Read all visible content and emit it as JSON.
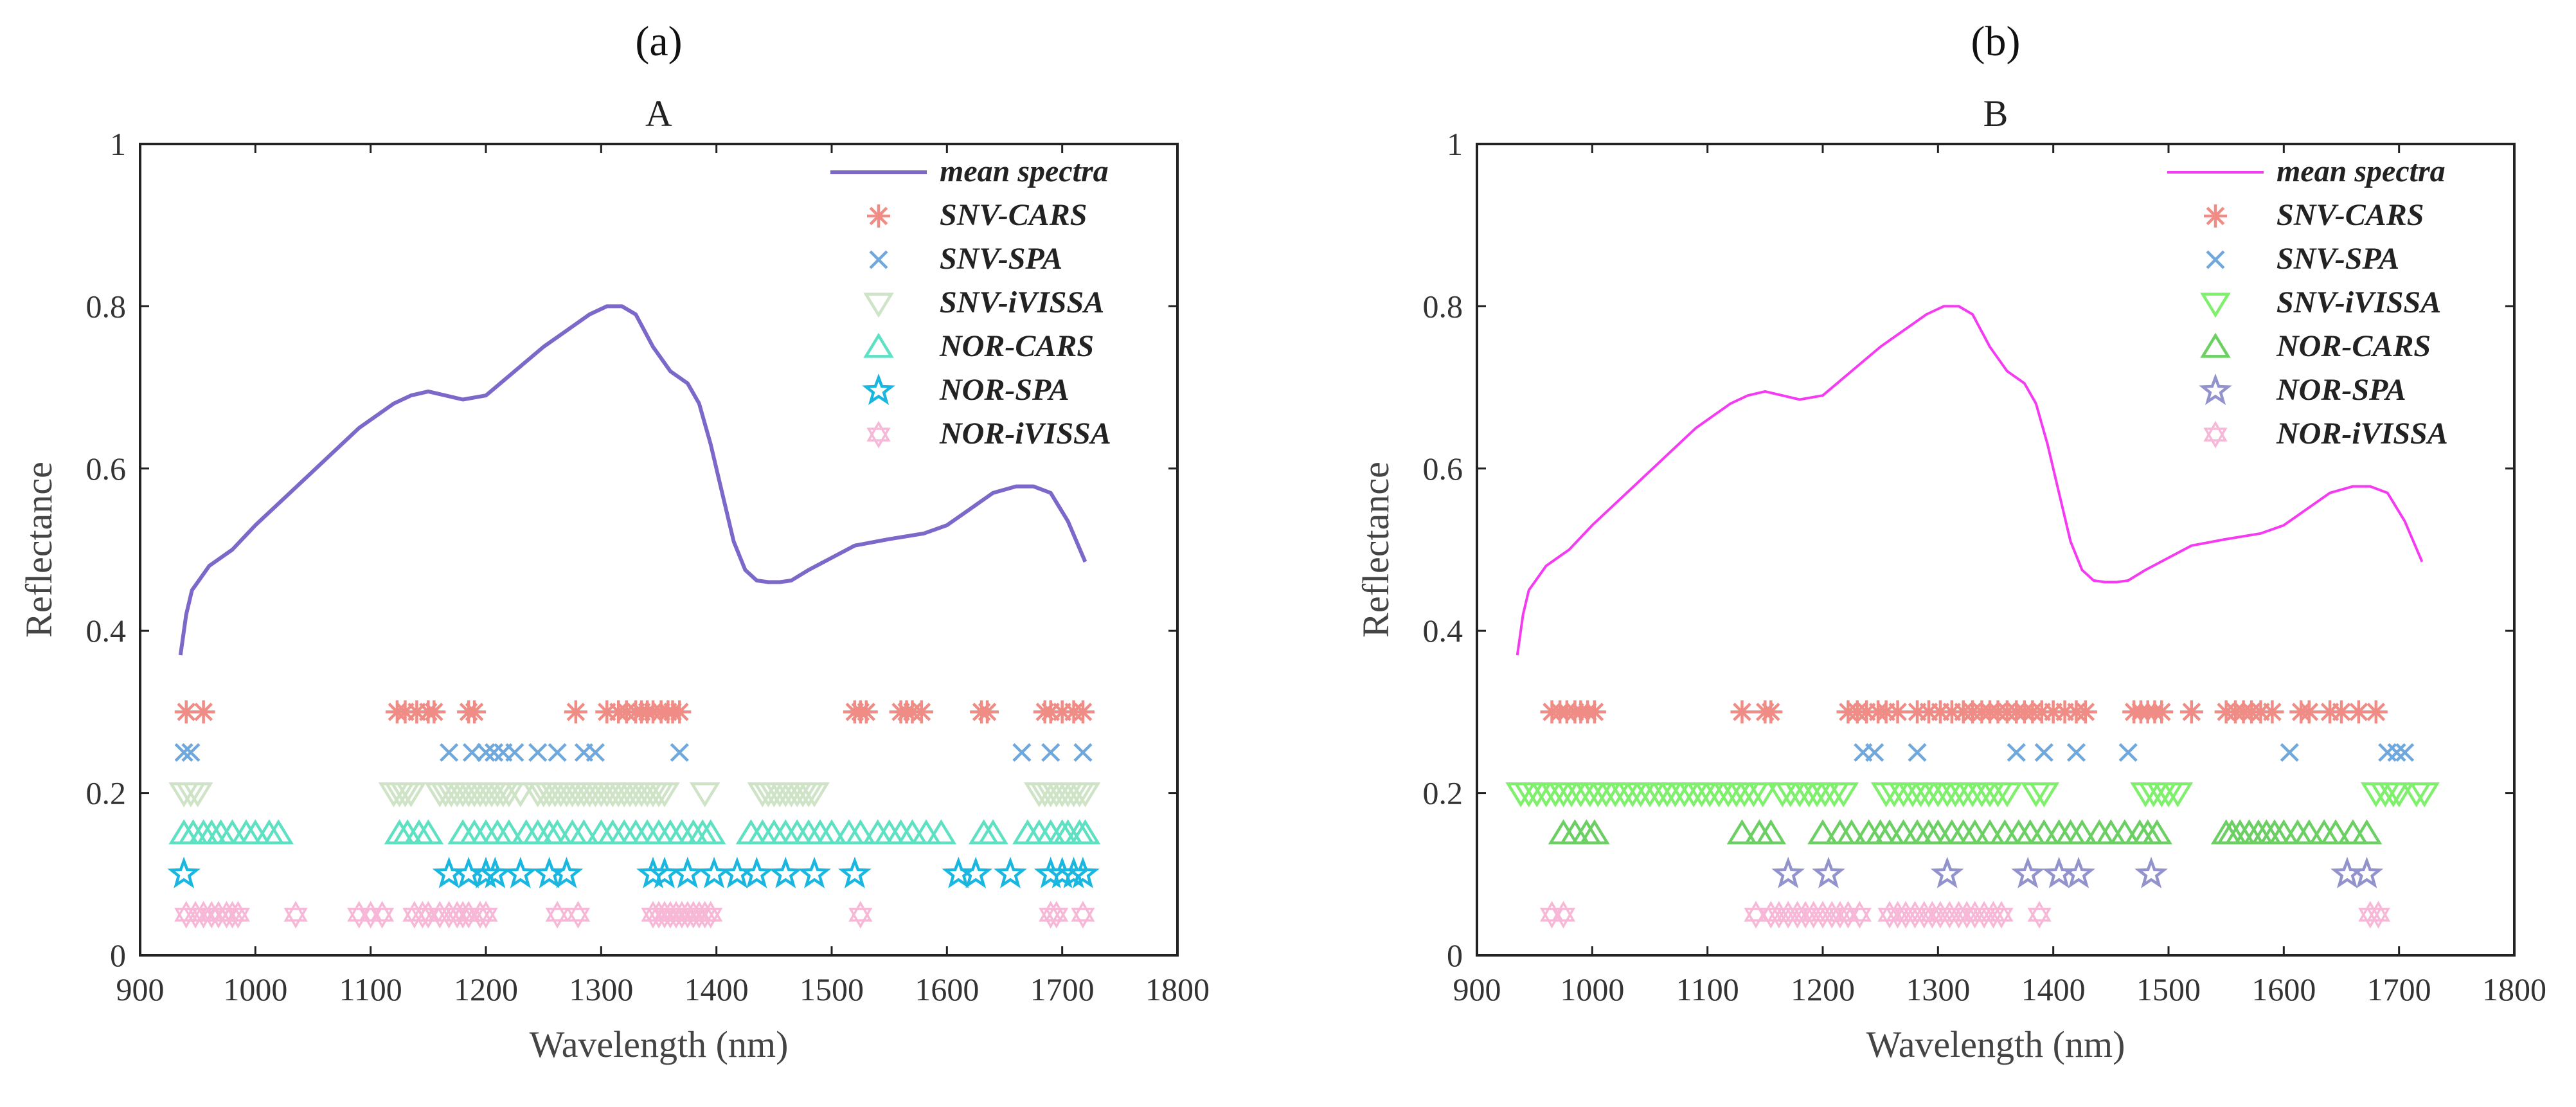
{
  "chart_data": [
    {
      "type": "line",
      "panel_label": "(a)",
      "title": "A",
      "xlabel": "Wavelength (nm)",
      "ylabel": "Reflectance",
      "xlim": [
        900,
        1800
      ],
      "ylim": [
        0,
        1
      ],
      "xticks": [
        "900",
        "1000",
        "1100",
        "1200",
        "1300",
        "1400",
        "1500",
        "1600",
        "1700",
        "1800"
      ],
      "yticks": [
        "0",
        "0.2",
        "0.4",
        "0.6",
        "0.8",
        "1"
      ],
      "legend_position": "top-right",
      "line": {
        "name": "mean spectra",
        "color": "#7b68c9",
        "x": [
          935,
          940,
          945,
          950,
          960,
          980,
          1000,
          1030,
          1060,
          1090,
          1120,
          1135,
          1150,
          1165,
          1180,
          1200,
          1225,
          1250,
          1270,
          1290,
          1305,
          1318,
          1330,
          1345,
          1360,
          1375,
          1385,
          1395,
          1405,
          1415,
          1425,
          1435,
          1445,
          1455,
          1465,
          1480,
          1500,
          1520,
          1550,
          1580,
          1600,
          1620,
          1640,
          1660,
          1675,
          1690,
          1705,
          1720
        ],
        "y": [
          0.37,
          0.42,
          0.45,
          0.46,
          0.48,
          0.5,
          0.53,
          0.57,
          0.61,
          0.65,
          0.68,
          0.69,
          0.695,
          0.69,
          0.685,
          0.69,
          0.72,
          0.75,
          0.77,
          0.79,
          0.8,
          0.8,
          0.79,
          0.75,
          0.72,
          0.705,
          0.68,
          0.63,
          0.57,
          0.51,
          0.475,
          0.462,
          0.46,
          0.46,
          0.462,
          0.475,
          0.49,
          0.505,
          0.513,
          0.52,
          0.53,
          0.55,
          0.57,
          0.578,
          0.578,
          0.57,
          0.535,
          0.485
        ]
      },
      "series": [
        {
          "name": "SNV-CARS",
          "marker": "asterisk",
          "color": "#f08c86",
          "y": 0.3,
          "x": [
            940,
            955,
            1123,
            1130,
            1140,
            1150,
            1155,
            1185,
            1190,
            1278,
            1305,
            1315,
            1322,
            1330,
            1335,
            1340,
            1345,
            1352,
            1358,
            1362,
            1368,
            1520,
            1525,
            1530,
            1560,
            1565,
            1570,
            1578,
            1630,
            1635,
            1685,
            1690,
            1700,
            1710,
            1718
          ]
        },
        {
          "name": "SNV-SPA",
          "marker": "x",
          "color": "#6fa8dc",
          "y": 0.25,
          "x": [
            938,
            944,
            1168,
            1188,
            1200,
            1207,
            1215,
            1225,
            1245,
            1262,
            1285,
            1295,
            1368,
            1665,
            1690,
            1718
          ]
        },
        {
          "name": "SNV-iVISSA",
          "marker": "tri-down",
          "color": "#cfe3c7",
          "y": 0.2,
          "x": [
            938,
            944,
            950,
            1120,
            1125,
            1130,
            1135,
            1160,
            1165,
            1170,
            1175,
            1180,
            1185,
            1190,
            1195,
            1200,
            1205,
            1210,
            1215,
            1220,
            1230,
            1245,
            1250,
            1255,
            1260,
            1265,
            1270,
            1275,
            1280,
            1285,
            1290,
            1295,
            1300,
            1305,
            1310,
            1315,
            1320,
            1325,
            1330,
            1335,
            1340,
            1345,
            1350,
            1355,
            1390,
            1440,
            1445,
            1450,
            1455,
            1460,
            1465,
            1470,
            1475,
            1480,
            1485,
            1680,
            1685,
            1690,
            1695,
            1700,
            1705,
            1710,
            1715,
            1720
          ]
        },
        {
          "name": "NOR-CARS",
          "marker": "tri-up",
          "color": "#5ee0c2",
          "y": 0.15,
          "x": [
            938,
            946,
            955,
            962,
            970,
            980,
            992,
            1000,
            1012,
            1020,
            1125,
            1132,
            1142,
            1150,
            1180,
            1190,
            1200,
            1210,
            1220,
            1235,
            1245,
            1255,
            1262,
            1275,
            1285,
            1300,
            1310,
            1320,
            1330,
            1340,
            1350,
            1360,
            1370,
            1380,
            1388,
            1395,
            1430,
            1440,
            1450,
            1460,
            1470,
            1480,
            1490,
            1500,
            1515,
            1525,
            1540,
            1550,
            1560,
            1570,
            1582,
            1595,
            1632,
            1640,
            1670,
            1680,
            1690,
            1700,
            1705,
            1715,
            1720
          ]
        },
        {
          "name": "NOR-SPA",
          "marker": "star",
          "color": "#19b6e0",
          "y": 0.1,
          "x": [
            938,
            1168,
            1185,
            1200,
            1208,
            1230,
            1255,
            1270,
            1345,
            1355,
            1375,
            1398,
            1418,
            1435,
            1460,
            1485,
            1520,
            1610,
            1625,
            1655,
            1690,
            1700,
            1710,
            1718
          ]
        },
        {
          "name": "NOR-iVISSA",
          "marker": "hexagram",
          "color": "#f7b8d8",
          "y": 0.05,
          "x": [
            940,
            948,
            955,
            962,
            968,
            975,
            980,
            985,
            1035,
            1090,
            1100,
            1110,
            1138,
            1145,
            1150,
            1160,
            1168,
            1175,
            1180,
            1185,
            1195,
            1200,
            1262,
            1280,
            1345,
            1350,
            1355,
            1360,
            1365,
            1370,
            1375,
            1380,
            1385,
            1390,
            1395,
            1525,
            1690,
            1695,
            1718
          ]
        }
      ]
    },
    {
      "type": "line",
      "panel_label": "(b)",
      "title": "B",
      "xlabel": "Wavelength (nm)",
      "ylabel": "Reflectance",
      "xlim": [
        900,
        1800
      ],
      "ylim": [
        0,
        1
      ],
      "xticks": [
        "900",
        "1000",
        "1100",
        "1200",
        "1300",
        "1400",
        "1500",
        "1600",
        "1700",
        "1800"
      ],
      "yticks": [
        "0",
        "0.2",
        "0.4",
        "0.6",
        "0.8",
        "1"
      ],
      "legend_position": "top-right",
      "line": {
        "name": "mean spectra",
        "color": "#f53bf2",
        "x": [
          935,
          940,
          945,
          950,
          960,
          980,
          1000,
          1030,
          1060,
          1090,
          1120,
          1135,
          1150,
          1165,
          1180,
          1200,
          1225,
          1250,
          1270,
          1290,
          1305,
          1318,
          1330,
          1345,
          1360,
          1375,
          1385,
          1395,
          1405,
          1415,
          1425,
          1435,
          1445,
          1455,
          1465,
          1480,
          1500,
          1520,
          1550,
          1580,
          1600,
          1620,
          1640,
          1660,
          1675,
          1690,
          1705,
          1720
        ],
        "y": [
          0.37,
          0.42,
          0.45,
          0.46,
          0.48,
          0.5,
          0.53,
          0.57,
          0.61,
          0.65,
          0.68,
          0.69,
          0.695,
          0.69,
          0.685,
          0.69,
          0.72,
          0.75,
          0.77,
          0.79,
          0.8,
          0.8,
          0.79,
          0.75,
          0.72,
          0.705,
          0.68,
          0.63,
          0.57,
          0.51,
          0.475,
          0.462,
          0.46,
          0.46,
          0.462,
          0.475,
          0.49,
          0.505,
          0.513,
          0.52,
          0.53,
          0.55,
          0.57,
          0.578,
          0.578,
          0.57,
          0.535,
          0.485
        ]
      },
      "series": [
        {
          "name": "SNV-CARS",
          "marker": "asterisk",
          "color": "#f08c86",
          "y": 0.3,
          "x": [
            965,
            972,
            978,
            985,
            990,
            996,
            1002,
            1130,
            1150,
            1155,
            1222,
            1230,
            1238,
            1248,
            1255,
            1265,
            1282,
            1292,
            1302,
            1312,
            1322,
            1330,
            1338,
            1345,
            1352,
            1360,
            1368,
            1375,
            1382,
            1390,
            1400,
            1410,
            1420,
            1428,
            1470,
            1476,
            1482,
            1488,
            1494,
            1520,
            1550,
            1558,
            1565,
            1572,
            1580,
            1590,
            1615,
            1622,
            1640,
            1650,
            1665,
            1680
          ]
        },
        {
          "name": "SNV-SPA",
          "marker": "x",
          "color": "#6fa8dc",
          "y": 0.25,
          "x": [
            1235,
            1245,
            1282,
            1368,
            1392,
            1420,
            1465,
            1605,
            1690,
            1698,
            1705
          ]
        },
        {
          "name": "SNV-iVISSA",
          "marker": "tri-down",
          "color": "#7ff06b",
          "y": 0.2,
          "x": [
            938,
            945,
            952,
            960,
            968,
            975,
            982,
            990,
            998,
            1005,
            1012,
            1020,
            1028,
            1035,
            1042,
            1050,
            1058,
            1065,
            1072,
            1080,
            1088,
            1095,
            1102,
            1110,
            1118,
            1125,
            1132,
            1140,
            1148,
            1165,
            1172,
            1180,
            1188,
            1195,
            1202,
            1210,
            1218,
            1255,
            1262,
            1270,
            1278,
            1285,
            1292,
            1300,
            1308,
            1315,
            1322,
            1330,
            1338,
            1345,
            1352,
            1360,
            1385,
            1392,
            1480,
            1487,
            1494,
            1500,
            1508,
            1680,
            1688,
            1695,
            1700,
            1715,
            1722
          ]
        },
        {
          "name": "NOR-CARS",
          "marker": "tri-up",
          "color": "#6ccf63",
          "y": 0.15,
          "x": [
            975,
            985,
            995,
            1002,
            1130,
            1145,
            1155,
            1200,
            1215,
            1225,
            1240,
            1250,
            1258,
            1270,
            1282,
            1292,
            1300,
            1312,
            1322,
            1332,
            1345,
            1358,
            1370,
            1380,
            1392,
            1405,
            1415,
            1425,
            1440,
            1450,
            1462,
            1475,
            1482,
            1490,
            1550,
            1555,
            1562,
            1570,
            1578,
            1585,
            1592,
            1600,
            1612,
            1622,
            1635,
            1645,
            1660,
            1672
          ]
        },
        {
          "name": "NOR-SPA",
          "marker": "star",
          "color": "#9292cc",
          "y": 0.1,
          "x": [
            1170,
            1205,
            1308,
            1378,
            1405,
            1422,
            1485,
            1655,
            1672
          ]
        },
        {
          "name": "NOR-iVISSA",
          "marker": "hexagram",
          "color": "#f7b8d8",
          "y": 0.05,
          "x": [
            965,
            975,
            1142,
            1155,
            1162,
            1170,
            1178,
            1185,
            1192,
            1200,
            1208,
            1215,
            1222,
            1232,
            1258,
            1265,
            1272,
            1280,
            1288,
            1295,
            1302,
            1310,
            1318,
            1325,
            1332,
            1340,
            1348,
            1355,
            1388,
            1675,
            1682
          ]
        }
      ]
    }
  ]
}
